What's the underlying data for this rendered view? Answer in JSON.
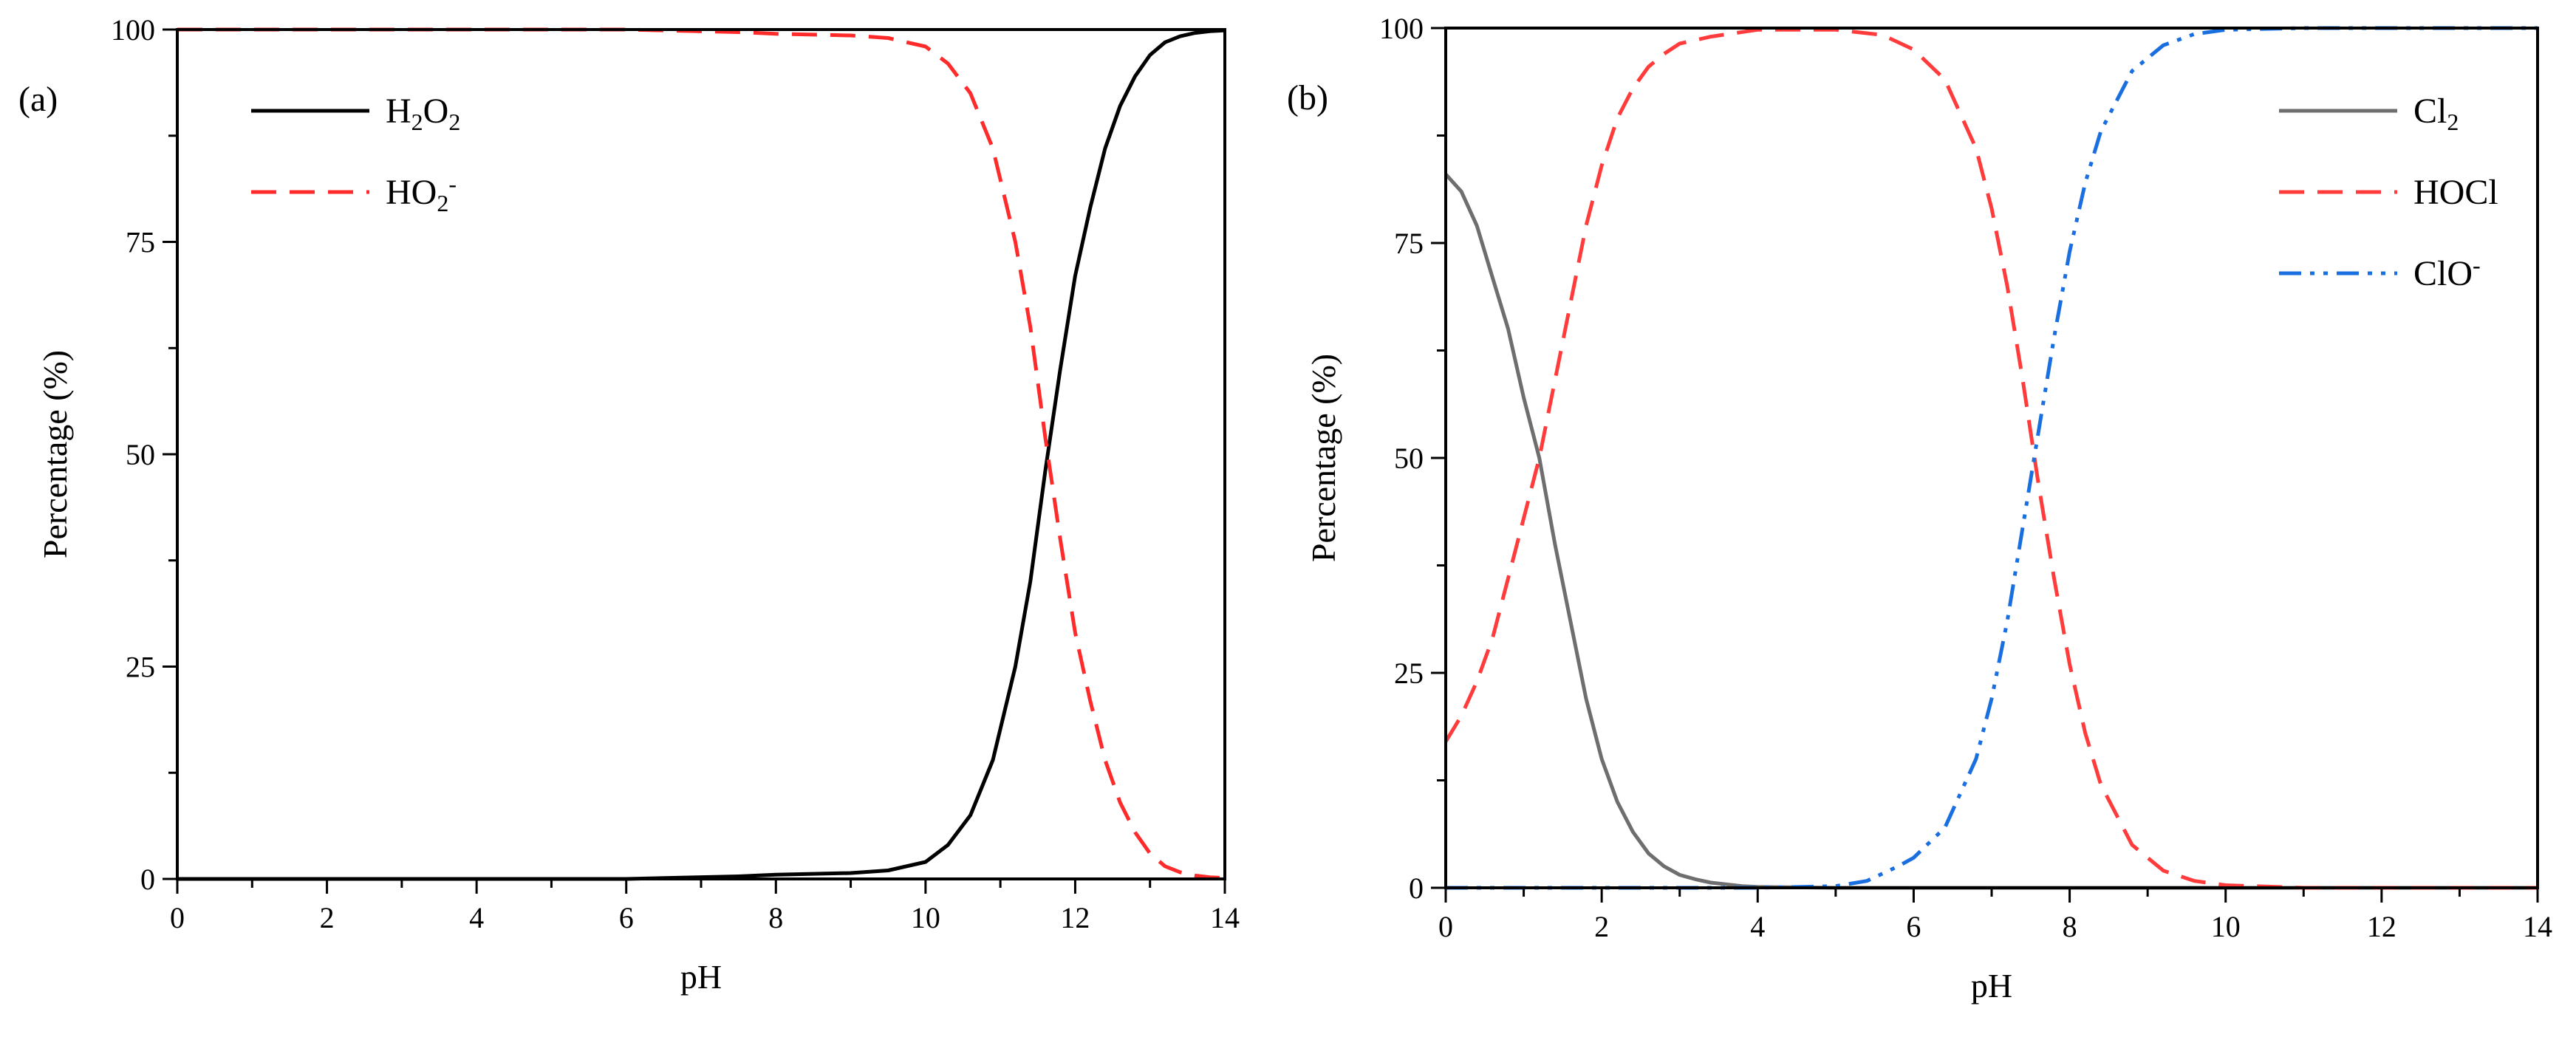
{
  "chart_data": [
    {
      "id": "a",
      "type": "line",
      "panel_label": "(a)",
      "xlabel": "pH",
      "ylabel": "Percentage (%)",
      "xlim": [
        0,
        14
      ],
      "ylim": [
        0,
        100
      ],
      "xticks": [
        0,
        2,
        4,
        6,
        8,
        10,
        12,
        14
      ],
      "yticks": [
        0,
        25,
        50,
        75,
        100
      ],
      "legend_position": "top-left",
      "series": [
        {
          "name": "H2O2",
          "label_main": "H",
          "label_sub": "2",
          "label_mid": "O",
          "label_sub2": "2",
          "label_sup": "",
          "color": "#000000",
          "dash": "solid",
          "x": [
            0,
            2,
            4,
            6,
            7.5,
            8,
            9,
            9.5,
            10,
            10.3,
            10.6,
            10.9,
            11.2,
            11.4,
            11.6,
            11.8,
            12,
            12.2,
            12.4,
            12.6,
            12.8,
            13,
            13.2,
            13.4,
            13.6,
            13.8,
            14
          ],
          "y": [
            0,
            0,
            0,
            0,
            0.3,
            0.5,
            0.7,
            1,
            2,
            4,
            7.5,
            14,
            25,
            35,
            48,
            60,
            71,
            79,
            86,
            91,
            94.5,
            97,
            98.5,
            99.2,
            99.6,
            99.8,
            99.9
          ]
        },
        {
          "name": "HO2-",
          "label_main": "HO",
          "label_sub": "2",
          "label_mid": "",
          "label_sub2": "",
          "label_sup": "-",
          "color": "#ff2a2a",
          "dash": "dashed",
          "x": [
            0,
            2,
            4,
            6,
            7.5,
            8,
            9,
            9.5,
            10,
            10.3,
            10.6,
            10.9,
            11.2,
            11.4,
            11.6,
            11.8,
            12,
            12.2,
            12.4,
            12.6,
            12.8,
            13,
            13.2,
            13.4,
            13.6,
            13.8,
            14
          ],
          "y": [
            100,
            100,
            100,
            100,
            99.7,
            99.5,
            99.3,
            99,
            98,
            96,
            92.5,
            86,
            75,
            65,
            52,
            40,
            29,
            21,
            14,
            9,
            5.5,
            3,
            1.5,
            0.8,
            0.4,
            0.2,
            0.1
          ]
        }
      ]
    },
    {
      "id": "b",
      "type": "line",
      "panel_label": "(b)",
      "xlabel": "pH",
      "ylabel": "Percentage (%)",
      "xlim": [
        0,
        14
      ],
      "ylim": [
        0,
        100
      ],
      "xticks": [
        0,
        2,
        4,
        6,
        8,
        10,
        12,
        14
      ],
      "yticks": [
        0,
        25,
        50,
        75,
        100
      ],
      "legend_position": "top-right",
      "series": [
        {
          "name": "Cl2",
          "label_main": "Cl",
          "label_sub": "2",
          "label_mid": "",
          "label_sub2": "",
          "label_sup": "",
          "color": "#6e6e6e",
          "dash": "solid",
          "x": [
            0,
            0.2,
            0.4,
            0.6,
            0.8,
            1.0,
            1.2,
            1.4,
            1.6,
            1.8,
            2.0,
            2.2,
            2.4,
            2.6,
            2.8,
            3.0,
            3.2,
            3.4,
            3.6,
            3.8,
            4.0,
            5,
            6,
            8,
            10,
            12,
            14
          ],
          "y": [
            83,
            81,
            77,
            71,
            65,
            57,
            50,
            40,
            31,
            22,
            15,
            10,
            6.5,
            4,
            2.5,
            1.5,
            1.0,
            0.6,
            0.4,
            0.2,
            0.1,
            0,
            0,
            0,
            0,
            0,
            0
          ]
        },
        {
          "name": "HOCl",
          "label_main": "HOCl",
          "label_sub": "",
          "label_mid": "",
          "label_sub2": "",
          "label_sup": "",
          "color": "#ff3b3b",
          "dash": "dashed",
          "x": [
            0,
            0.2,
            0.4,
            0.6,
            0.8,
            1.0,
            1.2,
            1.4,
            1.6,
            1.8,
            2.0,
            2.2,
            2.4,
            2.6,
            2.8,
            3.0,
            3.4,
            4.0,
            5.0,
            5.6,
            6.0,
            6.4,
            6.8,
            7.0,
            7.2,
            7.4,
            7.6,
            7.8,
            8.0,
            8.2,
            8.4,
            8.8,
            9.2,
            9.6,
            10,
            11,
            12,
            14
          ],
          "y": [
            17,
            20,
            24,
            29,
            36,
            43,
            50,
            59,
            68,
            77,
            84,
            89.5,
            93,
            95.5,
            97,
            98.2,
            99,
            99.8,
            99.8,
            99.2,
            97.5,
            94,
            86,
            79,
            70,
            59,
            47,
            36,
            26,
            18,
            12,
            5,
            2,
            0.8,
            0.3,
            0,
            0,
            0
          ]
        },
        {
          "name": "ClO-",
          "label_main": "ClO",
          "label_sub": "",
          "label_mid": "",
          "label_sub2": "",
          "label_sup": "-",
          "color": "#1a6fe0",
          "dash": "dashdotdot",
          "x": [
            0,
            1,
            2,
            3,
            4,
            5.0,
            5.4,
            5.8,
            6.0,
            6.4,
            6.8,
            7.0,
            7.2,
            7.4,
            7.6,
            7.8,
            8.0,
            8.2,
            8.4,
            8.8,
            9.2,
            9.6,
            10,
            11,
            12,
            14
          ],
          "y": [
            0,
            0,
            0,
            0,
            0,
            0.2,
            0.8,
            2.5,
            3.5,
            7,
            15,
            22,
            31,
            42,
            53,
            64,
            74,
            82,
            88,
            95,
            98,
            99.3,
            99.8,
            100,
            100,
            100
          ]
        }
      ]
    }
  ]
}
